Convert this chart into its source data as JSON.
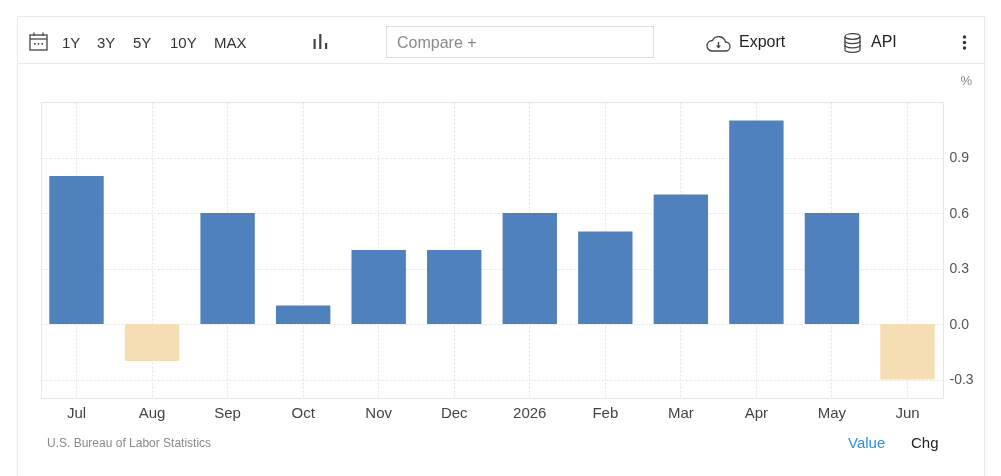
{
  "chart_data": {
    "type": "bar",
    "categories": [
      "Jul",
      "Aug",
      "Sep",
      "Oct",
      "Nov",
      "Dec",
      "2026",
      "Feb",
      "Mar",
      "Apr",
      "May",
      "Jun"
    ],
    "values": [
      0.8,
      -0.2,
      0.6,
      0.1,
      0.4,
      0.4,
      0.6,
      0.5,
      0.7,
      1.1,
      0.6,
      -0.3
    ],
    "colors": [
      "#4f81bd",
      "#f5deb3",
      "#4f81bd",
      "#4f81bd",
      "#4f81bd",
      "#4f81bd",
      "#4f81bd",
      "#4f81bd",
      "#4f81bd",
      "#4f81bd",
      "#4f81bd",
      "#f5deb3"
    ],
    "ylabel": "%",
    "ylim": [
      -0.4,
      1.2
    ],
    "yticks": [
      -0.3,
      {
        "value": 0,
        "label": "0.0"
      },
      0.3,
      0.6,
      0.9,
      {
        "value": 1.2,
        "label": null
      }
    ],
    "grid": true,
    "annotations": [
      "1Y",
      "3Y",
      "5Y",
      "10Y",
      "MAX",
      "Compare +",
      "Export",
      "API",
      "U.S. Bureau of Labor Statistics",
      "Value",
      "Chg"
    ]
  }
}
